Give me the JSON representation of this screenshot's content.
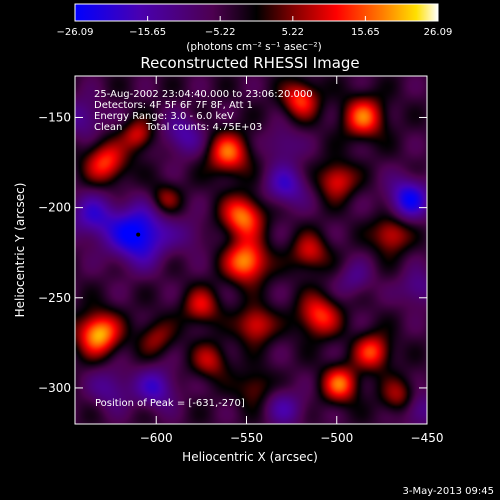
{
  "chart_data": {
    "type": "heatmap",
    "title": "Reconstructed RHESSI Image",
    "xlabel": "Heliocentric X (arcsec)",
    "ylabel": "Heliocentric Y (arcsec)",
    "xlim": [
      -645,
      -450
    ],
    "ylim": [
      -320,
      -127
    ],
    "xticks": [
      -600,
      -550,
      -500,
      -450
    ],
    "yticks": [
      -300,
      -250,
      -200,
      -150
    ],
    "colorbar": {
      "min": -26.09,
      "max": 26.09,
      "ticks": [
        "-26.09",
        "-15.65",
        "-5.22",
        "5.22",
        "15.65",
        "26.09"
      ],
      "units_label": "(photons cm⁻² s⁻¹ asec⁻²)"
    },
    "annotations": [
      "25-Aug-2002 23:04:40.000 to 23:06:20.000",
      "Detectors: 4F 5F 6F 7F 8F, Att 1",
      "Energy Range: 3.0 - 6.0 keV",
      "Clean",
      "Total counts: 4.75E+03"
    ],
    "peak_label": "Position of Peak = [-631,-270]",
    "peak": [
      -631,
      -270
    ],
    "blobs": [
      {
        "x": -632,
        "y": -270,
        "v": 26,
        "s": 8
      },
      {
        "x": -628,
        "y": -175,
        "v": 18,
        "s": 8
      },
      {
        "x": -610,
        "y": -160,
        "v": 14,
        "s": 6
      },
      {
        "x": -595,
        "y": -195,
        "v": 10,
        "s": 6
      },
      {
        "x": -560,
        "y": -170,
        "v": 20,
        "s": 8
      },
      {
        "x": -552,
        "y": -205,
        "v": 22,
        "s": 8
      },
      {
        "x": -550,
        "y": -230,
        "v": 24,
        "s": 8
      },
      {
        "x": -545,
        "y": -265,
        "v": 16,
        "s": 7
      },
      {
        "x": -575,
        "y": -255,
        "v": 14,
        "s": 7
      },
      {
        "x": -570,
        "y": -285,
        "v": 12,
        "s": 7
      },
      {
        "x": -600,
        "y": -272,
        "v": 10,
        "s": 7
      },
      {
        "x": -545,
        "y": -300,
        "v": 10,
        "s": 7
      },
      {
        "x": -520,
        "y": -140,
        "v": 18,
        "s": 7
      },
      {
        "x": -485,
        "y": -150,
        "v": 20,
        "s": 8
      },
      {
        "x": -500,
        "y": -185,
        "v": 16,
        "s": 7
      },
      {
        "x": -470,
        "y": -215,
        "v": 15,
        "s": 7
      },
      {
        "x": -515,
        "y": -225,
        "v": 14,
        "s": 7
      },
      {
        "x": -510,
        "y": -260,
        "v": 18,
        "s": 8
      },
      {
        "x": -480,
        "y": -280,
        "v": 18,
        "s": 7
      },
      {
        "x": -498,
        "y": -298,
        "v": 20,
        "s": 7
      },
      {
        "x": -465,
        "y": -305,
        "v": 12,
        "s": 7
      },
      {
        "x": -525,
        "y": -305,
        "v": 10,
        "s": 7
      },
      {
        "x": -610,
        "y": -215,
        "v": -24,
        "s": 11
      },
      {
        "x": -635,
        "y": -205,
        "v": -14,
        "s": 9
      },
      {
        "x": -640,
        "y": -150,
        "v": -10,
        "s": 8
      },
      {
        "x": -585,
        "y": -160,
        "v": -12,
        "s": 8
      },
      {
        "x": -600,
        "y": -300,
        "v": -14,
        "s": 8
      },
      {
        "x": -625,
        "y": -300,
        "v": -10,
        "s": 8
      },
      {
        "x": -528,
        "y": -188,
        "v": -14,
        "s": 8
      },
      {
        "x": -530,
        "y": -165,
        "v": -8,
        "s": 7
      },
      {
        "x": -527,
        "y": -308,
        "v": -18,
        "s": 8
      },
      {
        "x": -460,
        "y": -195,
        "v": -20,
        "s": 8
      },
      {
        "x": -455,
        "y": -245,
        "v": -10,
        "s": 7
      },
      {
        "x": -455,
        "y": -312,
        "v": -12,
        "s": 7
      },
      {
        "x": -490,
        "y": -240,
        "v": -8,
        "s": 7
      },
      {
        "x": -580,
        "y": -215,
        "v": -6,
        "s": 7
      }
    ]
  },
  "footer": {
    "timestamp": "3-May-2013 09:45"
  }
}
